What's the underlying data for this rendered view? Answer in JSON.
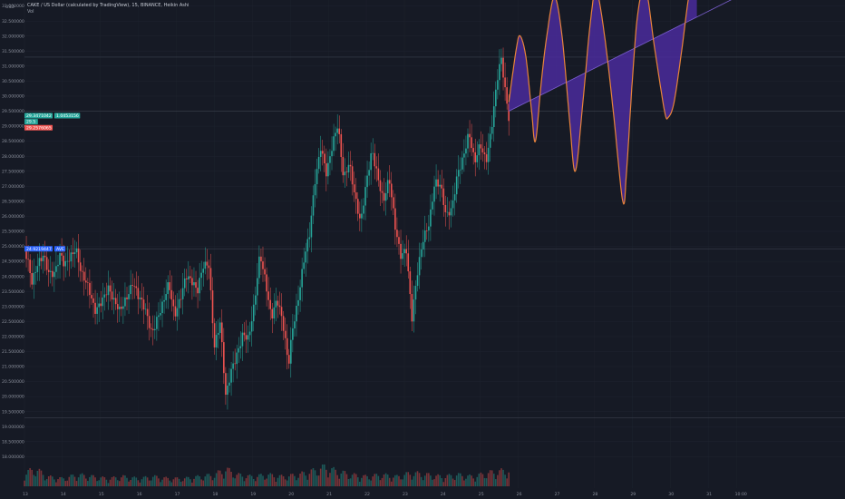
{
  "header": {
    "title": "CAKE / US Dollar (calculated by TradingView), 15, BINANCE, Heikin Ashi",
    "volume_label": "Vol"
  },
  "currency_label": "USD",
  "price_tags": [
    {
      "text": "29.3471042",
      "sub": "1.0453156",
      "color": "#26a69a"
    },
    {
      "text": "29.5",
      "color": "#26a69a"
    },
    {
      "text": "29.2576065",
      "color": "#ef5350"
    },
    {
      "text": "24.9219447",
      "sub": "AVE",
      "color": "#2962ff"
    }
  ],
  "colors": {
    "background": "#161a25",
    "up": "#26a69a",
    "down": "#ef5350",
    "projection_fill": "#4a2b9c",
    "projection_line": "#e8833a",
    "grid": "#1f2430"
  },
  "chart_data": {
    "type": "candlestick",
    "style": "Heikin Ashi",
    "symbol": "CAKE / US Dollar",
    "interval": "15",
    "exchange": "BINANCE",
    "y_ticks": [
      "18.000000",
      "18.500000",
      "19.000000",
      "19.500000",
      "20.000000",
      "20.500000",
      "21.000000",
      "21.500000",
      "22.000000",
      "22.500000",
      "23.000000",
      "23.500000",
      "24.000000",
      "24.500000",
      "25.000000",
      "25.500000",
      "26.000000",
      "26.500000",
      "27.000000",
      "27.500000",
      "28.000000",
      "28.500000",
      "29.000000",
      "29.500000",
      "30.000000",
      "30.500000",
      "31.000000",
      "31.500000",
      "32.000000",
      "32.500000",
      "33.000000"
    ],
    "x_ticks": [
      "13",
      "14",
      "15",
      "16",
      "17",
      "18",
      "19",
      "20",
      "21",
      "22",
      "23",
      "24",
      "25",
      "26",
      "27",
      "28",
      "29",
      "30",
      "31",
      "10:00"
    ],
    "ylim": [
      17.8,
      33.2
    ],
    "price_path": [
      [
        13.0,
        24.9
      ],
      [
        13.1,
        24.3
      ],
      [
        13.2,
        23.6
      ],
      [
        13.35,
        24.4
      ],
      [
        13.5,
        24.9
      ],
      [
        13.65,
        24.2
      ],
      [
        13.8,
        24.0
      ],
      [
        13.95,
        24.6
      ],
      [
        14.05,
        24.3
      ],
      [
        14.2,
        24.8
      ],
      [
        14.35,
        25.1
      ],
      [
        14.5,
        24.0
      ],
      [
        14.7,
        23.4
      ],
      [
        14.85,
        22.9
      ],
      [
        15.0,
        23.3
      ],
      [
        15.2,
        23.6
      ],
      [
        15.35,
        23.0
      ],
      [
        15.5,
        22.8
      ],
      [
        15.7,
        23.5
      ],
      [
        15.85,
        23.9
      ],
      [
        16.0,
        23.2
      ],
      [
        16.2,
        22.7
      ],
      [
        16.35,
        22.2
      ],
      [
        16.5,
        22.8
      ],
      [
        16.65,
        23.1
      ],
      [
        16.8,
        23.6
      ],
      [
        16.95,
        22.6
      ],
      [
        17.1,
        23.4
      ],
      [
        17.25,
        24.2
      ],
      [
        17.4,
        23.8
      ],
      [
        17.55,
        23.3
      ],
      [
        17.7,
        24.3
      ],
      [
        17.85,
        24.6
      ],
      [
        18.0,
        21.8
      ],
      [
        18.15,
        22.4
      ],
      [
        18.3,
        19.8
      ],
      [
        18.45,
        20.9
      ],
      [
        18.6,
        21.6
      ],
      [
        18.75,
        22.2
      ],
      [
        18.9,
        21.8
      ],
      [
        19.05,
        22.9
      ],
      [
        19.2,
        24.8
      ],
      [
        19.35,
        24.0
      ],
      [
        19.5,
        22.7
      ],
      [
        19.65,
        23.1
      ],
      [
        19.8,
        22.3
      ],
      [
        19.95,
        21.1
      ],
      [
        20.05,
        22.4
      ],
      [
        20.2,
        23.3
      ],
      [
        20.35,
        24.4
      ],
      [
        20.5,
        25.2
      ],
      [
        20.65,
        27.2
      ],
      [
        20.8,
        28.5
      ],
      [
        20.95,
        27.5
      ],
      [
        21.1,
        28.2
      ],
      [
        21.25,
        28.9
      ],
      [
        21.4,
        27.3
      ],
      [
        21.55,
        28.0
      ],
      [
        21.7,
        26.7
      ],
      [
        21.85,
        25.6
      ],
      [
        22.0,
        27.0
      ],
      [
        22.15,
        28.3
      ],
      [
        22.3,
        27.5
      ],
      [
        22.45,
        26.5
      ],
      [
        22.6,
        27.1
      ],
      [
        22.75,
        25.6
      ],
      [
        22.9,
        24.8
      ],
      [
        23.05,
        25.1
      ],
      [
        23.2,
        22.6
      ],
      [
        23.35,
        24.0
      ],
      [
        23.5,
        25.2
      ],
      [
        23.65,
        25.9
      ],
      [
        23.8,
        27.3
      ],
      [
        23.95,
        27.0
      ],
      [
        24.1,
        25.8
      ],
      [
        24.25,
        26.2
      ],
      [
        24.4,
        27.6
      ],
      [
        24.55,
        28.1
      ],
      [
        24.7,
        28.7
      ],
      [
        24.85,
        27.6
      ],
      [
        25.0,
        28.4
      ],
      [
        25.15,
        28.0
      ],
      [
        25.3,
        29.1
      ],
      [
        25.45,
        30.5
      ],
      [
        25.55,
        31.1
      ],
      [
        25.65,
        30.1
      ],
      [
        25.75,
        29.3
      ]
    ],
    "volume_path": [
      [
        13.0,
        0.7
      ],
      [
        13.3,
        0.9
      ],
      [
        13.6,
        0.5
      ],
      [
        14.0,
        0.4
      ],
      [
        14.4,
        0.6
      ],
      [
        14.8,
        0.5
      ],
      [
        15.2,
        0.4
      ],
      [
        15.6,
        0.5
      ],
      [
        16.0,
        0.4
      ],
      [
        16.4,
        0.5
      ],
      [
        16.8,
        0.4
      ],
      [
        17.2,
        0.4
      ],
      [
        17.6,
        0.5
      ],
      [
        18.0,
        0.6
      ],
      [
        18.3,
        0.9
      ],
      [
        18.6,
        0.6
      ],
      [
        19.0,
        0.5
      ],
      [
        19.4,
        0.6
      ],
      [
        19.8,
        0.5
      ],
      [
        20.2,
        0.6
      ],
      [
        20.6,
        0.8
      ],
      [
        20.9,
        1.0
      ],
      [
        21.2,
        0.8
      ],
      [
        21.6,
        0.6
      ],
      [
        22.0,
        0.5
      ],
      [
        22.4,
        0.6
      ],
      [
        22.8,
        0.5
      ],
      [
        23.2,
        0.7
      ],
      [
        23.6,
        0.6
      ],
      [
        24.0,
        0.5
      ],
      [
        24.4,
        0.6
      ],
      [
        24.8,
        0.5
      ],
      [
        25.2,
        0.7
      ],
      [
        25.6,
        0.8
      ]
    ],
    "projection": {
      "channel_start": [
        25.75,
        29.5
      ],
      "channel_end": [
        31.75,
        33.3
      ],
      "wave": [
        [
          25.75,
          29.8
        ],
        [
          25.95,
          31.6
        ],
        [
          26.05,
          32.0
        ],
        [
          26.2,
          31.3
        ],
        [
          26.35,
          29.5
        ],
        [
          26.45,
          28.5
        ],
        [
          26.6,
          30.4
        ],
        [
          26.75,
          32.0
        ],
        [
          26.95,
          33.3
        ],
        [
          27.15,
          32.0
        ],
        [
          27.35,
          29.2
        ],
        [
          27.5,
          27.5
        ],
        [
          27.7,
          29.8
        ],
        [
          27.9,
          32.5
        ],
        [
          28.05,
          33.5
        ],
        [
          28.25,
          32.2
        ],
        [
          28.5,
          29.5
        ],
        [
          28.75,
          26.5
        ],
        [
          28.85,
          27.5
        ],
        [
          29.0,
          30.5
        ],
        [
          29.15,
          32.8
        ],
        [
          29.35,
          33.6
        ],
        [
          29.6,
          31.5
        ],
        [
          29.85,
          29.5
        ],
        [
          29.95,
          29.3
        ],
        [
          30.1,
          29.8
        ],
        [
          30.3,
          31.5
        ],
        [
          30.5,
          33.4
        ],
        [
          30.7,
          34.2
        ]
      ]
    }
  }
}
